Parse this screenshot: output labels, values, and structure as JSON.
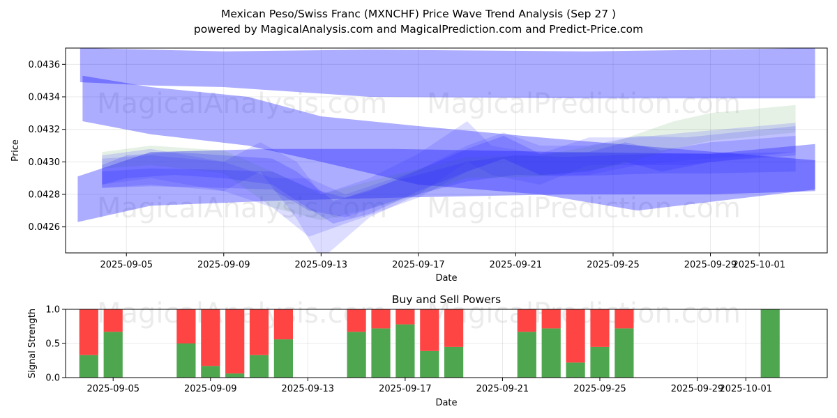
{
  "chart_data": [
    {
      "type": "area",
      "title": "Mexican Peso/Swiss Franc (MXNCHF) Price Wave Trend Analysis (Sep 27 )",
      "subtitle": "powered by MagicalAnalysis.com and MagicalPrediction.com and Predict-Price.com",
      "xlabel": "Date",
      "ylabel": "Price",
      "x_ticks": [
        "2025-09-05",
        "2025-09-09",
        "2025-09-13",
        "2025-09-17",
        "2025-09-21",
        "2025-09-25",
        "2025-09-29",
        "2025-10-01"
      ],
      "y_ticks": [
        "0.0426",
        "0.0428",
        "0.0430",
        "0.0432",
        "0.0434",
        "0.0436"
      ],
      "ylim": [
        0.04244,
        0.0437
      ],
      "x_range_days": [
        -0.5,
        30.8
      ],
      "grid": true,
      "watermarks": [
        "MagicalAnalysis.com",
        "MagicalPrediction.com"
      ],
      "bands": [
        {
          "color": "#0000ff",
          "opacity": 0.32,
          "x": [
            0.1,
            3,
            6,
            12,
            21,
            26,
            30.3
          ],
          "upper": [
            0.0437,
            0.04369,
            0.04368,
            0.04369,
            0.04368,
            0.04369,
            0.0437
          ],
          "lower": [
            0.04349,
            0.04347,
            0.04346,
            0.0434,
            0.04339,
            0.04339,
            0.04339
          ]
        },
        {
          "color": "#0000ff",
          "opacity": 0.32,
          "x": [
            0.2,
            3,
            7,
            10,
            14,
            19,
            23,
            30.3
          ],
          "upper": [
            0.04353,
            0.04346,
            0.0434,
            0.04328,
            0.04322,
            0.04315,
            0.0431,
            0.04301
          ],
          "lower": [
            0.04325,
            0.04317,
            0.0431,
            0.043,
            0.04286,
            0.0428,
            0.0427,
            0.04283
          ]
        },
        {
          "color": "#0000ff",
          "opacity": 0.32,
          "x": [
            0.0,
            3,
            8,
            13,
            20,
            26,
            30.3
          ],
          "upper": [
            0.04291,
            0.04306,
            0.04308,
            0.04308,
            0.04306,
            0.04305,
            0.04311
          ],
          "lower": [
            0.04263,
            0.04273,
            0.04276,
            0.04278,
            0.0428,
            0.0428,
            0.04282
          ]
        },
        {
          "color": "#2e8b2e",
          "opacity": 0.12,
          "x": [
            1,
            3,
            6,
            8,
            10,
            13,
            16,
            19,
            22,
            24.5,
            26,
            29.5
          ],
          "upper": [
            0.04306,
            0.0431,
            0.04307,
            0.04294,
            0.0428,
            0.04292,
            0.04303,
            0.04304,
            0.04312,
            0.04325,
            0.0433,
            0.04335
          ],
          "lower": [
            0.04296,
            0.04298,
            0.04293,
            0.04272,
            0.04264,
            0.04275,
            0.0429,
            0.04291,
            0.04297,
            0.04308,
            0.04313,
            0.04318
          ]
        },
        {
          "color": "#3333ff",
          "opacity": 0.17,
          "x": [
            1,
            3,
            6,
            7.5,
            9,
            10,
            12,
            14,
            16,
            17,
            19,
            21,
            23,
            25,
            29.5
          ],
          "upper": [
            0.04304,
            0.04308,
            0.043,
            0.04312,
            0.043,
            0.0428,
            0.0429,
            0.04305,
            0.04325,
            0.0431,
            0.04305,
            0.04315,
            0.04315,
            0.04318,
            0.04324
          ],
          "lower": [
            0.04286,
            0.0429,
            0.04282,
            0.04294,
            0.04265,
            0.0424,
            0.04266,
            0.0428,
            0.043,
            0.04292,
            0.04286,
            0.04298,
            0.04298,
            0.04301,
            0.04306
          ]
        },
        {
          "color": "#3333ff",
          "opacity": 0.17,
          "x": [
            1,
            3,
            6,
            8,
            9.5,
            11,
            14,
            16,
            17.5,
            19,
            21,
            23,
            25,
            29.5
          ],
          "upper": [
            0.04302,
            0.04304,
            0.043,
            0.0429,
            0.0429,
            0.0428,
            0.04295,
            0.0431,
            0.04318,
            0.0431,
            0.0431,
            0.04316,
            0.04315,
            0.04322
          ],
          "lower": [
            0.04284,
            0.04286,
            0.04282,
            0.04272,
            0.04254,
            0.04262,
            0.04278,
            0.04294,
            0.04302,
            0.04292,
            0.04292,
            0.04298,
            0.04298,
            0.04306
          ]
        },
        {
          "color": "#2222ff",
          "opacity": 0.2,
          "x": [
            1,
            2,
            4,
            6,
            8,
            9,
            10.5,
            12,
            14,
            16,
            17.5,
            19,
            21,
            22.5,
            24,
            26,
            29.5
          ],
          "upper": [
            0.04298,
            0.04304,
            0.04306,
            0.04304,
            0.04302,
            0.04294,
            0.04276,
            0.04282,
            0.04295,
            0.04308,
            0.04316,
            0.04305,
            0.04306,
            0.04312,
            0.04307,
            0.04312,
            0.04316
          ],
          "lower": [
            0.04286,
            0.0429,
            0.04292,
            0.0429,
            0.04286,
            0.04276,
            0.04262,
            0.04268,
            0.04282,
            0.04294,
            0.04302,
            0.04292,
            0.04294,
            0.043,
            0.04294,
            0.043,
            0.04304
          ]
        },
        {
          "color": "#2222ff",
          "opacity": 0.2,
          "x": [
            1,
            3,
            6,
            8,
            9.5,
            11,
            13,
            16,
            18,
            20,
            22,
            24,
            26,
            29.5
          ],
          "upper": [
            0.04294,
            0.04296,
            0.04295,
            0.04294,
            0.04284,
            0.04278,
            0.04288,
            0.043,
            0.04304,
            0.04303,
            0.04304,
            0.04305,
            0.04305,
            0.04306
          ],
          "lower": [
            0.04284,
            0.04285,
            0.04284,
            0.04283,
            0.0427,
            0.04266,
            0.04276,
            0.04288,
            0.04292,
            0.04291,
            0.04292,
            0.04293,
            0.04293,
            0.04294
          ]
        }
      ]
    },
    {
      "type": "bar",
      "title": "Buy and Sell Powers",
      "xlabel": "Date",
      "ylabel": "Signal Strength",
      "x_ticks": [
        "2025-09-05",
        "2025-09-09",
        "2025-09-13",
        "2025-09-17",
        "2025-09-21",
        "2025-09-25",
        "2025-09-29",
        "2025-10-01"
      ],
      "y_ticks": [
        "0.0",
        "0.5",
        "1.0"
      ],
      "ylim": [
        0,
        1
      ],
      "x_range_days": [
        -0.5,
        30.8
      ],
      "grid": true,
      "watermarks": [
        "MagicalAnalysis.com",
        "MagicalPrediction.com"
      ],
      "buy_color": "#4ea64e",
      "sell_color": "#ff4444",
      "days": [
        1,
        2,
        5,
        6,
        7,
        8,
        9,
        12,
        13,
        14,
        15,
        16,
        19,
        20,
        21,
        22,
        23,
        29
      ],
      "buy": [
        0.33,
        0.67,
        0.5,
        0.17,
        0.06,
        0.33,
        0.56,
        0.67,
        0.72,
        0.78,
        0.39,
        0.45,
        0.67,
        0.72,
        0.22,
        0.45,
        0.72,
        1.0
      ]
    }
  ]
}
